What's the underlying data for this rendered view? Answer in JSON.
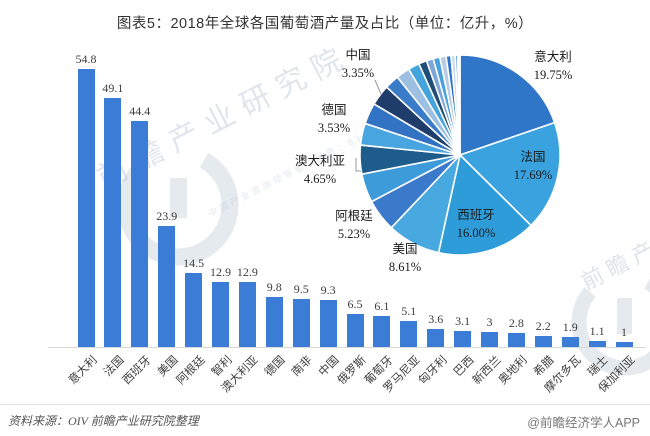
{
  "title": "图表5：2018年全球各国葡萄酒产量及占比（单位：亿升，%）",
  "footer": {
    "source": "资料来源：OIV  前瞻产业研究院整理",
    "credit": "@前瞻经济学人APP"
  },
  "watermark": {
    "text": "前瞻产业研究院",
    "subtext": "中国产业咨询领导者（股票：839599）",
    "text2": "前瞻产业"
  },
  "colors": {
    "bar": "#3b7cd6",
    "axis": "#d9d9d9",
    "title_text": "#333333",
    "label_text": "#3f3f3f"
  },
  "chart_data": [
    {
      "type": "bar",
      "title": "2018年全球各国葡萄酒产量",
      "unit": "亿升",
      "categories": [
        "意大利",
        "法国",
        "西班牙",
        "美国",
        "阿根廷",
        "智利",
        "澳大利亚",
        "德国",
        "南非",
        "中国",
        "俄罗斯",
        "葡萄牙",
        "罗马尼亚",
        "匈牙利",
        "巴西",
        "新西兰",
        "奥地利",
        "希腊",
        "摩尔多瓦",
        "瑞士",
        "保加利亚"
      ],
      "values": [
        54.8,
        49.1,
        44.4,
        23.9,
        14.5,
        12.9,
        12.9,
        9.8,
        9.5,
        9.3,
        6.5,
        6.1,
        5.1,
        3.6,
        3.1,
        3,
        2.8,
        2.2,
        1.9,
        1.1,
        1
      ],
      "value_labels": [
        "54.8",
        "49.1",
        "44.4",
        "23.9",
        "14.5",
        "12.9",
        "12.9",
        "9.8",
        "9.5",
        "9.3",
        "6.5",
        "6.1",
        "5.1",
        "3.6",
        "3.1",
        "3",
        "2.8",
        "2.2",
        "1.9",
        "1.1",
        "1"
      ],
      "ylim": [
        0,
        60
      ],
      "grid": false,
      "bar_color": "#3b7cd6"
    },
    {
      "type": "pie",
      "title": "2018年全球各国葡萄酒产量占比",
      "unit": "%",
      "start": "12点钟方向顺时针",
      "slices": [
        {
          "name": "意大利",
          "pct": 19.75,
          "label": "19.75%",
          "labeled": true,
          "color": "#2f76c8"
        },
        {
          "name": "法国",
          "pct": 17.69,
          "label": "17.69%",
          "labeled": true,
          "color": "#3aa2de"
        },
        {
          "name": "西班牙",
          "pct": 16.0,
          "label": "16.00%",
          "labeled": true,
          "color": "#2d9cd9"
        },
        {
          "name": "美国",
          "pct": 8.61,
          "label": "8.61%",
          "labeled": true,
          "color": "#47a9e0"
        },
        {
          "name": "阿根廷",
          "pct": 5.23,
          "label": "5.23%",
          "labeled": true,
          "color": "#3b79cb"
        },
        {
          "name": "智利",
          "pct": 4.65,
          "label": "",
          "labeled": false,
          "color": "#3e9bd9"
        },
        {
          "name": "澳大利亚",
          "pct": 4.65,
          "label": "4.65%",
          "labeled": true,
          "color": "#1e5c8c"
        },
        {
          "name": "德国",
          "pct": 3.53,
          "label": "3.53%",
          "labeled": true,
          "color": "#49a5df"
        },
        {
          "name": "南非",
          "pct": 3.42,
          "label": "",
          "labeled": false,
          "color": "#3273c4"
        },
        {
          "name": "中国",
          "pct": 3.35,
          "label": "3.35%",
          "labeled": true,
          "color": "#1f3d6b"
        },
        {
          "name": "俄罗斯",
          "pct": 2.34,
          "label": "",
          "labeled": false,
          "color": "#3b7cc9"
        },
        {
          "name": "葡萄牙",
          "pct": 2.2,
          "label": "",
          "labeled": false,
          "color": "#9cbfe2"
        },
        {
          "name": "罗马尼亚",
          "pct": 1.84,
          "label": "",
          "labeled": false,
          "color": "#45a4dc"
        },
        {
          "name": "匈牙利",
          "pct": 1.3,
          "label": "",
          "labeled": false,
          "color": "#1f4e79"
        },
        {
          "name": "巴西",
          "pct": 1.12,
          "label": "",
          "labeled": false,
          "color": "#7ea6d8"
        },
        {
          "name": "新西兰",
          "pct": 1.08,
          "label": "",
          "labeled": false,
          "color": "#4ba0dc"
        },
        {
          "name": "奥地利",
          "pct": 1.01,
          "label": "",
          "labeled": false,
          "color": "#b8cce4"
        },
        {
          "name": "希腊",
          "pct": 0.79,
          "label": "",
          "labeled": false,
          "color": "#2e75c6"
        },
        {
          "name": "摩尔多瓦",
          "pct": 0.68,
          "label": "",
          "labeled": false,
          "color": "#cdddee"
        },
        {
          "name": "瑞士",
          "pct": 0.4,
          "label": "",
          "labeled": false,
          "color": "#5b9bd5"
        },
        {
          "name": "保加利亚",
          "pct": 0.36,
          "label": "",
          "labeled": false,
          "color": "#e2ebf5"
        }
      ]
    }
  ]
}
